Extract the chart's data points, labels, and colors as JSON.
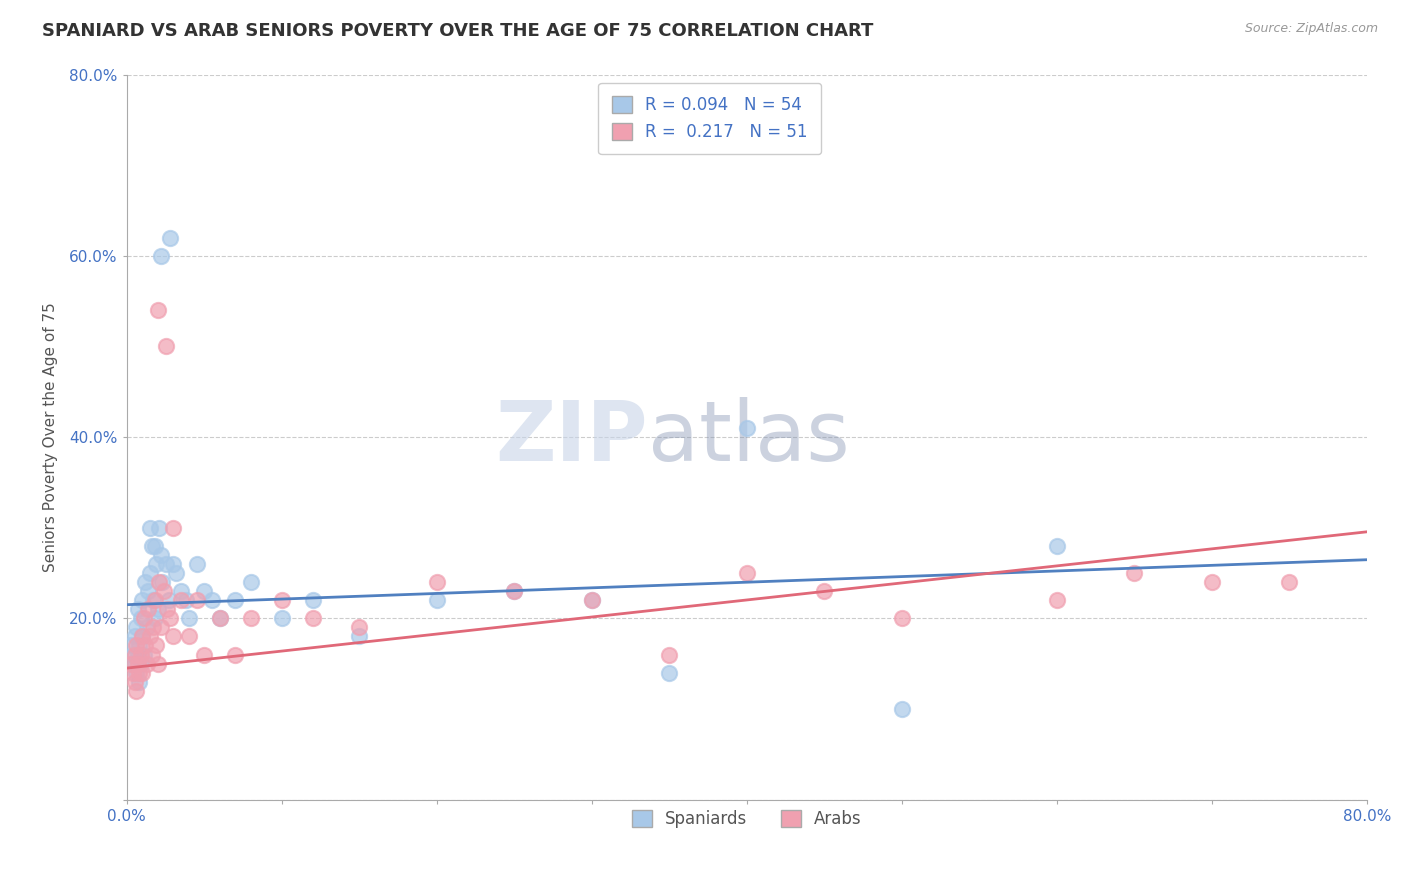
{
  "title": "SPANIARD VS ARAB SENIORS POVERTY OVER THE AGE OF 75 CORRELATION CHART",
  "source": "Source: ZipAtlas.com",
  "ylabel": "Seniors Poverty Over the Age of 75",
  "xlim": [
    0.0,
    0.8
  ],
  "ylim": [
    0.0,
    0.8
  ],
  "spaniards_color": "#a8c8e8",
  "arabs_color": "#f0a0b0",
  "spaniards_line_color": "#5080c0",
  "arabs_line_color": "#e06878",
  "R_spaniards": 0.094,
  "N_spaniards": 54,
  "R_arabs": 0.217,
  "N_arabs": 51,
  "spaniards_x": [
    0.003,
    0.004,
    0.005,
    0.005,
    0.006,
    0.006,
    0.007,
    0.007,
    0.008,
    0.008,
    0.009,
    0.009,
    0.01,
    0.01,
    0.011,
    0.012,
    0.013,
    0.014,
    0.015,
    0.016,
    0.017,
    0.018,
    0.019,
    0.02,
    0.021,
    0.022,
    0.023,
    0.025,
    0.027,
    0.03,
    0.032,
    0.035,
    0.038,
    0.04,
    0.045,
    0.05,
    0.055,
    0.06,
    0.07,
    0.08,
    0.1,
    0.12,
    0.15,
    0.2,
    0.25,
    0.3,
    0.35,
    0.4,
    0.5,
    0.6,
    0.022,
    0.028,
    0.015,
    0.018
  ],
  "spaniards_y": [
    0.17,
    0.16,
    0.15,
    0.18,
    0.14,
    0.19,
    0.16,
    0.21,
    0.17,
    0.13,
    0.15,
    0.2,
    0.18,
    0.22,
    0.16,
    0.24,
    0.19,
    0.23,
    0.25,
    0.28,
    0.22,
    0.2,
    0.26,
    0.21,
    0.3,
    0.27,
    0.24,
    0.26,
    0.22,
    0.26,
    0.25,
    0.23,
    0.22,
    0.2,
    0.26,
    0.23,
    0.22,
    0.2,
    0.22,
    0.24,
    0.2,
    0.22,
    0.18,
    0.22,
    0.23,
    0.22,
    0.14,
    0.41,
    0.1,
    0.28,
    0.6,
    0.62,
    0.3,
    0.28
  ],
  "arabs_x": [
    0.003,
    0.004,
    0.005,
    0.005,
    0.006,
    0.006,
    0.007,
    0.008,
    0.009,
    0.01,
    0.01,
    0.011,
    0.012,
    0.013,
    0.014,
    0.015,
    0.016,
    0.017,
    0.018,
    0.019,
    0.02,
    0.021,
    0.022,
    0.024,
    0.026,
    0.028,
    0.03,
    0.035,
    0.04,
    0.045,
    0.05,
    0.06,
    0.07,
    0.08,
    0.1,
    0.12,
    0.15,
    0.2,
    0.25,
    0.3,
    0.35,
    0.4,
    0.45,
    0.5,
    0.6,
    0.65,
    0.7,
    0.75,
    0.02,
    0.025,
    0.03
  ],
  "arabs_y": [
    0.15,
    0.14,
    0.16,
    0.13,
    0.17,
    0.12,
    0.15,
    0.14,
    0.16,
    0.18,
    0.14,
    0.2,
    0.17,
    0.15,
    0.21,
    0.18,
    0.16,
    0.19,
    0.22,
    0.17,
    0.15,
    0.24,
    0.19,
    0.23,
    0.21,
    0.2,
    0.18,
    0.22,
    0.18,
    0.22,
    0.16,
    0.2,
    0.16,
    0.2,
    0.22,
    0.2,
    0.19,
    0.24,
    0.23,
    0.22,
    0.16,
    0.25,
    0.23,
    0.2,
    0.22,
    0.25,
    0.24,
    0.24,
    0.54,
    0.5,
    0.3
  ],
  "background_color": "#ffffff",
  "grid_color": "#cccccc",
  "watermark_zip": "ZIP",
  "watermark_atlas": "atlas",
  "watermark_color_zip": "#c8d4e8",
  "watermark_color_atlas": "#8090b0",
  "title_fontsize": 13,
  "axis_fontsize": 11,
  "tick_fontsize": 11,
  "legend_fontsize": 12
}
